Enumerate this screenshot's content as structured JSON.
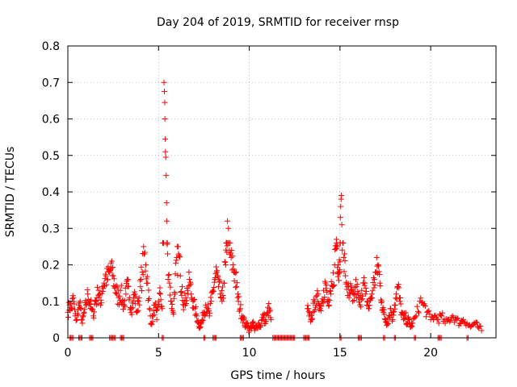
{
  "chart_data": {
    "type": "scatter",
    "title": "Day 204 of 2019, SRMTID for receiver rnsp",
    "xlabel": "GPS time / hours",
    "ylabel": "SRMTID / TECUs",
    "xlim": [
      0,
      23.6
    ],
    "ylim": [
      0,
      0.8
    ],
    "xticks": [
      0,
      5,
      10,
      15,
      20
    ],
    "xtick_labels": [
      "0",
      "5",
      "10",
      "15",
      "20"
    ],
    "yticks": [
      0,
      0.1,
      0.2,
      0.3,
      0.4,
      0.5,
      0.6,
      0.7,
      0.8
    ],
    "ytick_labels": [
      "0",
      "0.1",
      "0.2",
      "0.3",
      "0.4",
      "0.5",
      "0.6",
      "0.7",
      "0.8"
    ],
    "grid": true,
    "marker": "+",
    "color": "#ff0000",
    "series": [
      {
        "name": "SRMTID",
        "points": [
          [
            0.0,
            0.07
          ],
          [
            0.1,
            0.09
          ],
          [
            0.2,
            0.08
          ],
          [
            0.3,
            0.11
          ],
          [
            0.4,
            0.06
          ],
          [
            0.5,
            0.05
          ],
          [
            0.6,
            0.09
          ],
          [
            0.7,
            0.08
          ],
          [
            0.8,
            0.04
          ],
          [
            0.9,
            0.07
          ],
          [
            1.0,
            0.09
          ],
          [
            1.1,
            0.12
          ],
          [
            1.2,
            0.1
          ],
          [
            1.3,
            0.08
          ],
          [
            1.4,
            0.06
          ],
          [
            1.5,
            0.1
          ],
          [
            1.6,
            0.11
          ],
          [
            1.7,
            0.13
          ],
          [
            1.8,
            0.09
          ],
          [
            1.9,
            0.14
          ],
          [
            2.0,
            0.15
          ],
          [
            2.1,
            0.17
          ],
          [
            2.2,
            0.16
          ],
          [
            2.3,
            0.18
          ],
          [
            2.4,
            0.19
          ],
          [
            2.5,
            0.17
          ],
          [
            2.6,
            0.14
          ],
          [
            2.7,
            0.12
          ],
          [
            2.8,
            0.11
          ],
          [
            2.9,
            0.13
          ],
          [
            3.0,
            0.1
          ],
          [
            3.1,
            0.09
          ],
          [
            3.2,
            0.12
          ],
          [
            3.3,
            0.14
          ],
          [
            3.4,
            0.11
          ],
          [
            3.5,
            0.08
          ],
          [
            3.6,
            0.1
          ],
          [
            3.7,
            0.12
          ],
          [
            3.8,
            0.07
          ],
          [
            3.9,
            0.1
          ],
          [
            4.0,
            0.14
          ],
          [
            4.1,
            0.18
          ],
          [
            4.2,
            0.23
          ],
          [
            4.3,
            0.2
          ],
          [
            4.4,
            0.15
          ],
          [
            4.5,
            0.08
          ],
          [
            4.6,
            0.04
          ],
          [
            4.7,
            0.06
          ],
          [
            4.8,
            0.09
          ],
          [
            4.9,
            0.05
          ],
          [
            5.0,
            0.1
          ],
          [
            5.1,
            0.12
          ],
          [
            5.2,
            0.08
          ],
          [
            5.3,
            0.7
          ],
          [
            5.32,
            0.675
          ],
          [
            5.34,
            0.645
          ],
          [
            5.35,
            0.6
          ],
          [
            5.37,
            0.545
          ],
          [
            5.38,
            0.51
          ],
          [
            5.4,
            0.495
          ],
          [
            5.42,
            0.445
          ],
          [
            5.44,
            0.37
          ],
          [
            5.45,
            0.32
          ],
          [
            5.5,
            0.23
          ],
          [
            5.6,
            0.15
          ],
          [
            5.7,
            0.1
          ],
          [
            5.8,
            0.07
          ],
          [
            5.9,
            0.12
          ],
          [
            6.0,
            0.22
          ],
          [
            6.1,
            0.23
          ],
          [
            6.2,
            0.17
          ],
          [
            6.3,
            0.14
          ],
          [
            6.4,
            0.09
          ],
          [
            6.5,
            0.11
          ],
          [
            6.6,
            0.13
          ],
          [
            6.7,
            0.16
          ],
          [
            6.8,
            0.12
          ],
          [
            6.9,
            0.1
          ],
          [
            7.0,
            0.08
          ],
          [
            7.1,
            0.06
          ],
          [
            7.2,
            0.04
          ],
          [
            7.3,
            0.03
          ],
          [
            7.4,
            0.05
          ],
          [
            7.5,
            0.07
          ],
          [
            7.6,
            0.09
          ],
          [
            7.7,
            0.08
          ],
          [
            7.8,
            0.06
          ],
          [
            7.9,
            0.1
          ],
          [
            8.0,
            0.13
          ],
          [
            8.1,
            0.16
          ],
          [
            8.2,
            0.18
          ],
          [
            8.3,
            0.14
          ],
          [
            8.4,
            0.12
          ],
          [
            8.5,
            0.1
          ],
          [
            8.6,
            0.15
          ],
          [
            8.7,
            0.2
          ],
          [
            8.75,
            0.26
          ],
          [
            8.8,
            0.32
          ],
          [
            8.85,
            0.3
          ],
          [
            8.9,
            0.24
          ],
          [
            9.0,
            0.22
          ],
          [
            9.1,
            0.2
          ],
          [
            9.2,
            0.18
          ],
          [
            9.3,
            0.14
          ],
          [
            9.4,
            0.1
          ],
          [
            9.5,
            0.08
          ],
          [
            9.6,
            0.06
          ],
          [
            9.7,
            0.05
          ],
          [
            9.8,
            0.03
          ],
          [
            9.9,
            0.04
          ],
          [
            10.0,
            0.02
          ],
          [
            10.1,
            0.03
          ],
          [
            10.2,
            0.04
          ],
          [
            10.3,
            0.02
          ],
          [
            10.4,
            0.03
          ],
          [
            10.5,
            0.04
          ],
          [
            10.6,
            0.03
          ],
          [
            10.7,
            0.05
          ],
          [
            10.8,
            0.06
          ],
          [
            10.9,
            0.04
          ],
          [
            11.0,
            0.07
          ],
          [
            11.1,
            0.08
          ],
          [
            11.2,
            0.05
          ],
          [
            13.2,
            0.08
          ],
          [
            13.3,
            0.06
          ],
          [
            13.4,
            0.05
          ],
          [
            13.5,
            0.07
          ],
          [
            13.6,
            0.1
          ],
          [
            13.7,
            0.09
          ],
          [
            13.8,
            0.12
          ],
          [
            13.9,
            0.08
          ],
          [
            14.0,
            0.1
          ],
          [
            14.1,
            0.13
          ],
          [
            14.2,
            0.15
          ],
          [
            14.3,
            0.1
          ],
          [
            14.4,
            0.09
          ],
          [
            14.5,
            0.12
          ],
          [
            14.6,
            0.14
          ],
          [
            14.7,
            0.2
          ],
          [
            14.8,
            0.27
          ],
          [
            14.85,
            0.25
          ],
          [
            14.9,
            0.2
          ],
          [
            14.95,
            0.18
          ],
          [
            15.0,
            0.26
          ],
          [
            15.02,
            0.33
          ],
          [
            15.04,
            0.36
          ],
          [
            15.06,
            0.38
          ],
          [
            15.08,
            0.39
          ],
          [
            15.1,
            0.31
          ],
          [
            15.2,
            0.22
          ],
          [
            15.3,
            0.17
          ],
          [
            15.4,
            0.14
          ],
          [
            15.5,
            0.11
          ],
          [
            15.6,
            0.13
          ],
          [
            15.7,
            0.1
          ],
          [
            15.8,
            0.12
          ],
          [
            15.9,
            0.14
          ],
          [
            16.0,
            0.11
          ],
          [
            16.1,
            0.09
          ],
          [
            16.2,
            0.13
          ],
          [
            16.3,
            0.15
          ],
          [
            16.4,
            0.12
          ],
          [
            16.5,
            0.1
          ],
          [
            16.6,
            0.08
          ],
          [
            16.7,
            0.11
          ],
          [
            16.8,
            0.13
          ],
          [
            16.9,
            0.16
          ],
          [
            17.0,
            0.18
          ],
          [
            17.1,
            0.2
          ],
          [
            17.2,
            0.15
          ],
          [
            17.3,
            0.1
          ],
          [
            17.4,
            0.07
          ],
          [
            17.5,
            0.05
          ],
          [
            17.6,
            0.04
          ],
          [
            17.7,
            0.06
          ],
          [
            17.8,
            0.08
          ],
          [
            17.9,
            0.05
          ],
          [
            18.0,
            0.09
          ],
          [
            18.1,
            0.12
          ],
          [
            18.2,
            0.14
          ],
          [
            18.3,
            0.1
          ],
          [
            18.4,
            0.07
          ],
          [
            18.5,
            0.05
          ],
          [
            18.6,
            0.06
          ],
          [
            18.7,
            0.04
          ],
          [
            18.8,
            0.05
          ],
          [
            18.9,
            0.03
          ],
          [
            19.0,
            0.04
          ],
          [
            19.2,
            0.06
          ],
          [
            19.4,
            0.1
          ],
          [
            19.6,
            0.09
          ],
          [
            19.8,
            0.07
          ],
          [
            20.0,
            0.05
          ],
          [
            20.2,
            0.06
          ],
          [
            20.4,
            0.05
          ],
          [
            20.6,
            0.06
          ],
          [
            20.8,
            0.04
          ],
          [
            21.0,
            0.05
          ],
          [
            21.2,
            0.06
          ],
          [
            21.4,
            0.05
          ],
          [
            21.6,
            0.04
          ],
          [
            21.8,
            0.05
          ],
          [
            22.0,
            0.04
          ],
          [
            22.2,
            0.03
          ],
          [
            22.4,
            0.04
          ],
          [
            22.6,
            0.03
          ],
          [
            22.8,
            0.02
          ]
        ],
        "zero_runs": [
          [
            0.1,
            0.3
          ],
          [
            0.6,
            0.8
          ],
          [
            1.2,
            1.4
          ],
          [
            2.3,
            2.6
          ],
          [
            2.9,
            3.1
          ],
          [
            5.2,
            5.3
          ],
          [
            7.5,
            7.6
          ],
          [
            8.0,
            8.2
          ],
          [
            9.5,
            9.7
          ],
          [
            11.3,
            12.5
          ],
          [
            13.0,
            13.3
          ],
          [
            15.0,
            15.1
          ],
          [
            16.0,
            16.2
          ],
          [
            17.4,
            17.5
          ],
          [
            18.0,
            18.1
          ],
          [
            19.1,
            19.2
          ],
          [
            20.4,
            20.6
          ],
          [
            22.0,
            22.1
          ]
        ]
      }
    ]
  }
}
